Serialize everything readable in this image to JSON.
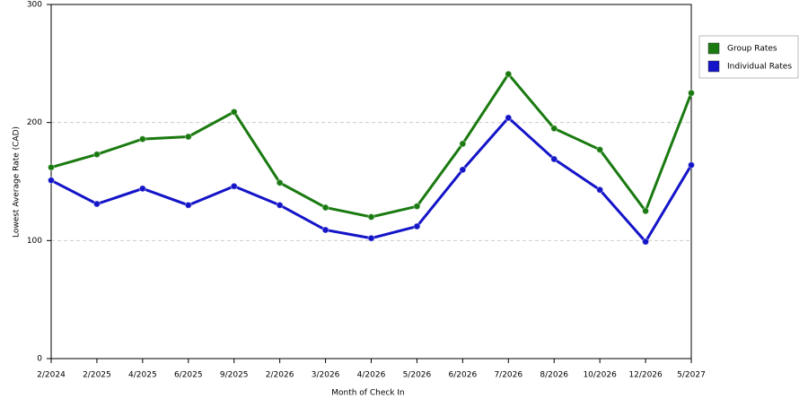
{
  "chart_data": {
    "type": "line",
    "x_label": "Month of Check In",
    "y_label": "Lowest Average Rate (CAD)",
    "categories": [
      "2/2024",
      "2/2025",
      "4/2025",
      "6/2025",
      "9/2025",
      "2/2026",
      "3/2026",
      "4/2026",
      "5/2026",
      "6/2026",
      "7/2026",
      "8/2026",
      "10/2026",
      "12/2026",
      "5/2027"
    ],
    "series": [
      {
        "name": "Group Rates",
        "color": "#1a7a10",
        "values": [
          162,
          173,
          186,
          188,
          209,
          149,
          128,
          120,
          129,
          182,
          241,
          195,
          177,
          125,
          225
        ]
      },
      {
        "name": "Individual Rates",
        "color": "#1414c8",
        "values": [
          151,
          131,
          144,
          130,
          146,
          130,
          109,
          102,
          112,
          160,
          204,
          169,
          143,
          99,
          164
        ]
      }
    ],
    "ylim": [
      0,
      300
    ],
    "yticks": [
      0,
      100,
      200,
      300
    ],
    "grid": true,
    "legend": "right"
  }
}
